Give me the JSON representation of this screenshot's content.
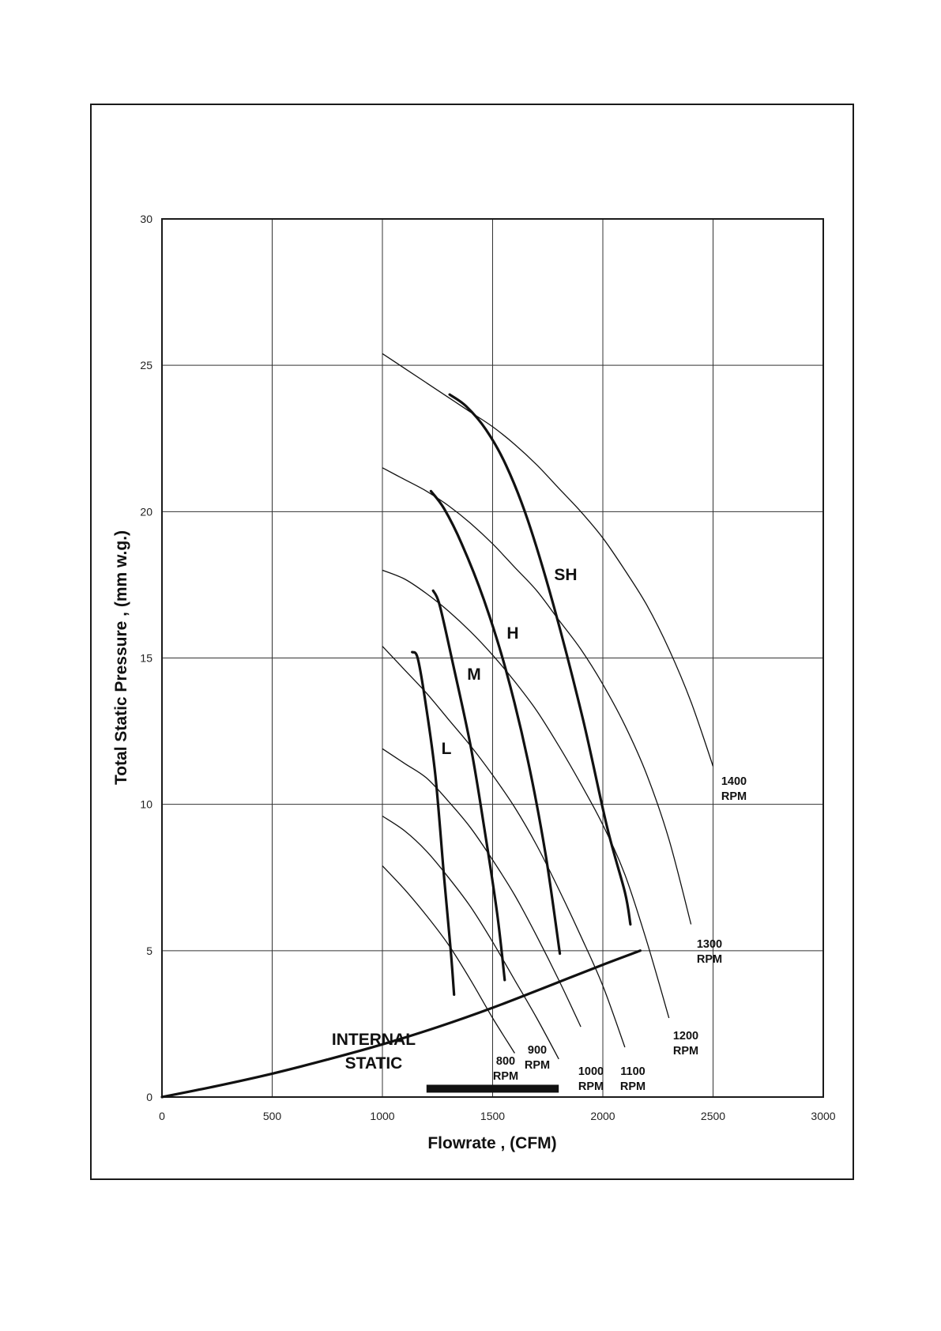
{
  "chart_data": {
    "type": "line",
    "xlabel": "Flowrate , (CFM)",
    "ylabel": "Total Static Pressure , (mm w.g.)",
    "xlim": [
      0,
      3000
    ],
    "ylim": [
      0,
      30
    ],
    "x_ticks": [
      "0",
      "500",
      "1000",
      "1500",
      "2000",
      "2500",
      "3000"
    ],
    "y_ticks": [
      "0",
      "5",
      "10",
      "15",
      "20",
      "25",
      "30"
    ],
    "grid": true,
    "rpm_curves": [
      {
        "label": [
          "800",
          "RPM"
        ],
        "x": [
          1000,
          1100,
          1200,
          1300,
          1400,
          1500,
          1600
        ],
        "y": [
          7.9,
          7.1,
          6.2,
          5.2,
          4.0,
          2.7,
          1.5
        ]
      },
      {
        "label": [
          "900",
          "RPM"
        ],
        "x": [
          1000,
          1100,
          1200,
          1300,
          1400,
          1500,
          1600,
          1700,
          1800
        ],
        "y": [
          9.6,
          9.1,
          8.4,
          7.5,
          6.5,
          5.3,
          4.0,
          2.7,
          1.3
        ]
      },
      {
        "label": [
          "1000",
          "RPM"
        ],
        "x": [
          1000,
          1100,
          1200,
          1300,
          1400,
          1500,
          1600,
          1700,
          1800,
          1900
        ],
        "y": [
          11.9,
          11.4,
          10.9,
          10.1,
          9.2,
          8.1,
          6.9,
          5.5,
          4.0,
          2.4
        ]
      },
      {
        "label": [
          "1100",
          "RPM"
        ],
        "x": [
          1000,
          1100,
          1200,
          1300,
          1400,
          1500,
          1600,
          1700,
          1800,
          1900,
          2000,
          2100
        ],
        "y": [
          15.4,
          14.6,
          13.8,
          12.9,
          12.0,
          11.0,
          9.9,
          8.6,
          7.1,
          5.5,
          3.8,
          1.7
        ]
      },
      {
        "label": [
          "1200",
          "RPM"
        ],
        "x": [
          1000,
          1100,
          1200,
          1300,
          1400,
          1500,
          1600,
          1700,
          1800,
          1900,
          2000,
          2100,
          2200,
          2300
        ],
        "y": [
          18.0,
          17.7,
          17.2,
          16.6,
          15.9,
          15.1,
          14.2,
          13.2,
          12.0,
          10.7,
          9.3,
          7.6,
          5.3,
          2.7
        ]
      },
      {
        "label": [
          "1300",
          "RPM"
        ],
        "x": [
          1000,
          1100,
          1200,
          1300,
          1400,
          1500,
          1600,
          1700,
          1800,
          1900,
          2000,
          2100,
          2200,
          2300,
          2400
        ],
        "y": [
          21.5,
          21.1,
          20.7,
          20.2,
          19.6,
          18.9,
          18.1,
          17.3,
          16.3,
          15.3,
          14.1,
          12.7,
          11.0,
          8.8,
          5.9
        ]
      },
      {
        "label": [
          "1400",
          "RPM"
        ],
        "x": [
          1000,
          1100,
          1200,
          1300,
          1400,
          1500,
          1600,
          1700,
          1800,
          1900,
          2000,
          2100,
          2200,
          2300,
          2400,
          2500
        ],
        "y": [
          25.4,
          24.9,
          24.4,
          23.9,
          23.4,
          22.9,
          22.3,
          21.6,
          20.8,
          20.0,
          19.1,
          18.0,
          16.8,
          15.3,
          13.5,
          11.3
        ]
      }
    ],
    "fan_speed_curves": [
      {
        "label": "L",
        "x": [
          1135,
          1160,
          1195,
          1240,
          1280,
          1310,
          1325
        ],
        "y": [
          15.2,
          15.0,
          13.5,
          11.0,
          7.5,
          5.0,
          3.5
        ]
      },
      {
        "label": "M",
        "x": [
          1230,
          1260,
          1320,
          1400,
          1460,
          1520,
          1555
        ],
        "y": [
          17.3,
          16.8,
          14.8,
          12.0,
          9.3,
          6.3,
          4.0
        ]
      },
      {
        "label": "H",
        "x": [
          1220,
          1280,
          1360,
          1460,
          1560,
          1660,
          1740,
          1805
        ],
        "y": [
          20.7,
          20.1,
          18.9,
          17.0,
          14.6,
          11.5,
          8.3,
          4.9
        ]
      },
      {
        "label": "SH",
        "x": [
          1305,
          1380,
          1470,
          1560,
          1660,
          1780,
          1910,
          2020,
          2100,
          2125
        ],
        "y": [
          24.0,
          23.6,
          22.8,
          21.6,
          19.7,
          16.7,
          12.9,
          9.2,
          7.0,
          5.9
        ]
      }
    ],
    "internal_static": {
      "label": [
        "INTERNAL",
        "STATIC"
      ],
      "x": [
        0,
        250,
        500,
        750,
        1000,
        1250,
        1500,
        1750,
        2000,
        2170
      ],
      "y": [
        0,
        0.38,
        0.8,
        1.28,
        1.8,
        2.39,
        3.05,
        3.78,
        4.52,
        5.0
      ]
    },
    "operating_range": {
      "x": [
        1200,
        1800
      ],
      "y": 0.15
    }
  }
}
